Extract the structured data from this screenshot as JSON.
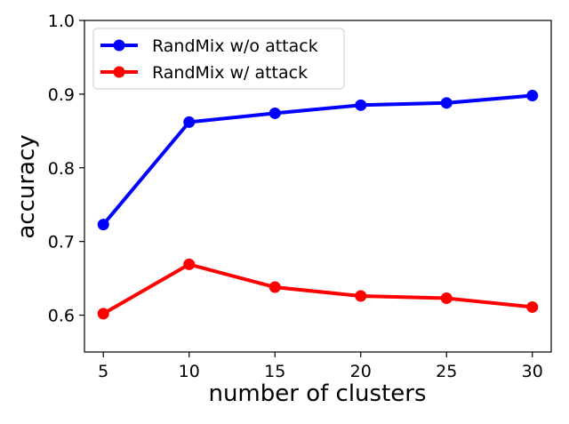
{
  "chart_data": {
    "type": "line",
    "title": "",
    "xlabel": "number of clusters",
    "ylabel": "accuracy",
    "x": [
      5,
      10,
      15,
      20,
      25,
      30
    ],
    "xlim": [
      3.9,
      31.1
    ],
    "ylim": [
      0.55,
      1.0
    ],
    "xticks": [
      5,
      10,
      15,
      20,
      25,
      30
    ],
    "yticks": [
      0.6,
      0.7,
      0.8,
      0.9,
      1.0
    ],
    "ytick_labels": [
      "0.6",
      "0.7",
      "0.8",
      "0.9",
      "1.0"
    ],
    "grid": false,
    "legend_position": "top-left",
    "series": [
      {
        "name": "RandMix w/o attack",
        "color": "#0000ff",
        "values": [
          0.723,
          0.862,
          0.874,
          0.885,
          0.888,
          0.898
        ]
      },
      {
        "name": "RandMix w/ attack",
        "color": "#ff0000",
        "values": [
          0.602,
          0.669,
          0.638,
          0.626,
          0.623,
          0.611
        ]
      }
    ]
  }
}
